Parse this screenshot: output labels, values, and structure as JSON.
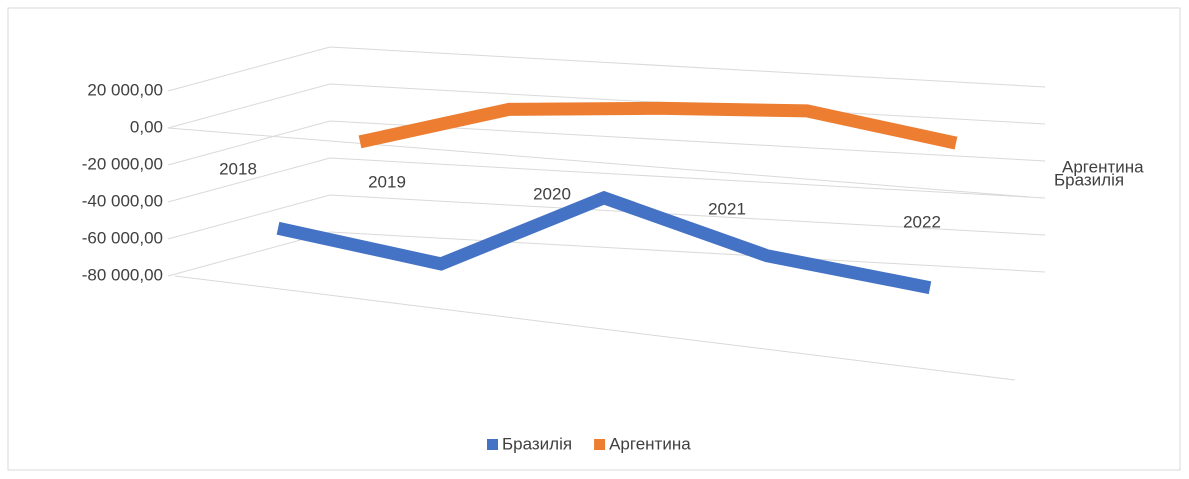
{
  "chart_data": {
    "type": "line3d",
    "categories": [
      "2018",
      "2019",
      "2020",
      "2021",
      "2022"
    ],
    "series": [
      {
        "name": "Бразилія",
        "color": "#4472c4",
        "values": [
          -51000,
          -65000,
          -24000,
          -50000,
          -62000
        ]
      },
      {
        "name": "Аргентина",
        "color": "#ed7d31",
        "values": [
          -10000,
          10000,
          13000,
          14000,
          -1000
        ]
      }
    ],
    "ylim": [
      -80000,
      20000
    ],
    "yticks": [
      {
        "value": 20000,
        "label": "20 000,00"
      },
      {
        "value": 0,
        "label": "0,00"
      },
      {
        "value": -20000,
        "label": "-20 000,00"
      },
      {
        "value": -40000,
        "label": "-40 000,00"
      },
      {
        "value": -60000,
        "label": "-60 000,00"
      },
      {
        "value": -80000,
        "label": "-80 000,00"
      }
    ],
    "grid": true,
    "legend": "bottom"
  }
}
